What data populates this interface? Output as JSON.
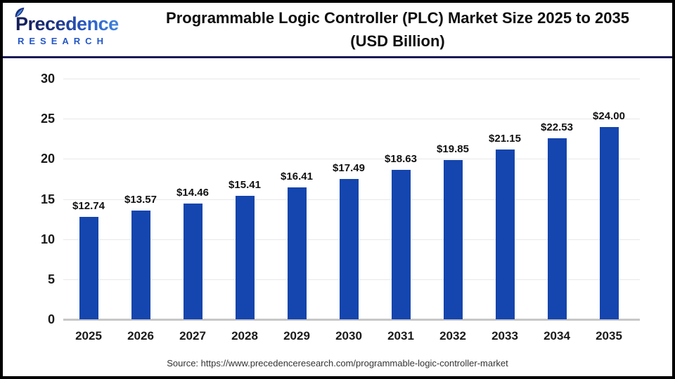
{
  "header": {
    "logo": {
      "brand": "Precedence",
      "sub": "R E S E A R C H_joined",
      "sub_text": "RESEARCH"
    },
    "title_line1": "Programmable Logic Controller (PLC) Market Size 2025 to 2035",
    "title_line2": "(USD Billion)"
  },
  "chart_data": {
    "type": "bar",
    "title": "Programmable Logic Controller (PLC) Market Size 2025 to 2035 (USD Billion)",
    "categories": [
      "2025",
      "2026",
      "2027",
      "2028",
      "2029",
      "2030",
      "2031",
      "2032",
      "2033",
      "2034",
      "2035"
    ],
    "values": [
      12.74,
      13.57,
      14.46,
      15.41,
      16.41,
      17.49,
      18.63,
      19.85,
      21.15,
      22.53,
      24.0
    ],
    "value_labels": [
      "$12.74",
      "$13.57",
      "$14.46",
      "$15.41",
      "$16.41",
      "$17.49",
      "$18.63",
      "$19.85",
      "$21.15",
      "$22.53",
      "$24.00"
    ],
    "xlabel": "",
    "ylabel": "",
    "ylim": [
      0,
      30
    ],
    "yticks": [
      0,
      5,
      10,
      15,
      20,
      25,
      30
    ],
    "grid": true,
    "legend": "none",
    "bar_color": "#1545ae"
  },
  "footer": {
    "source": "Source: https://www.precedenceresearch.com/programmable-logic-controller-market"
  },
  "colors": {
    "bar": "#1545ae",
    "header_divider": "#1a1b55",
    "grid": "#e8e8e8",
    "baseline": "#c7c7c7",
    "logo_navy": "#1c2f7c",
    "logo_blue": "#3f86e0",
    "research_blue": "#2356c7",
    "frame_border": "#000000"
  }
}
